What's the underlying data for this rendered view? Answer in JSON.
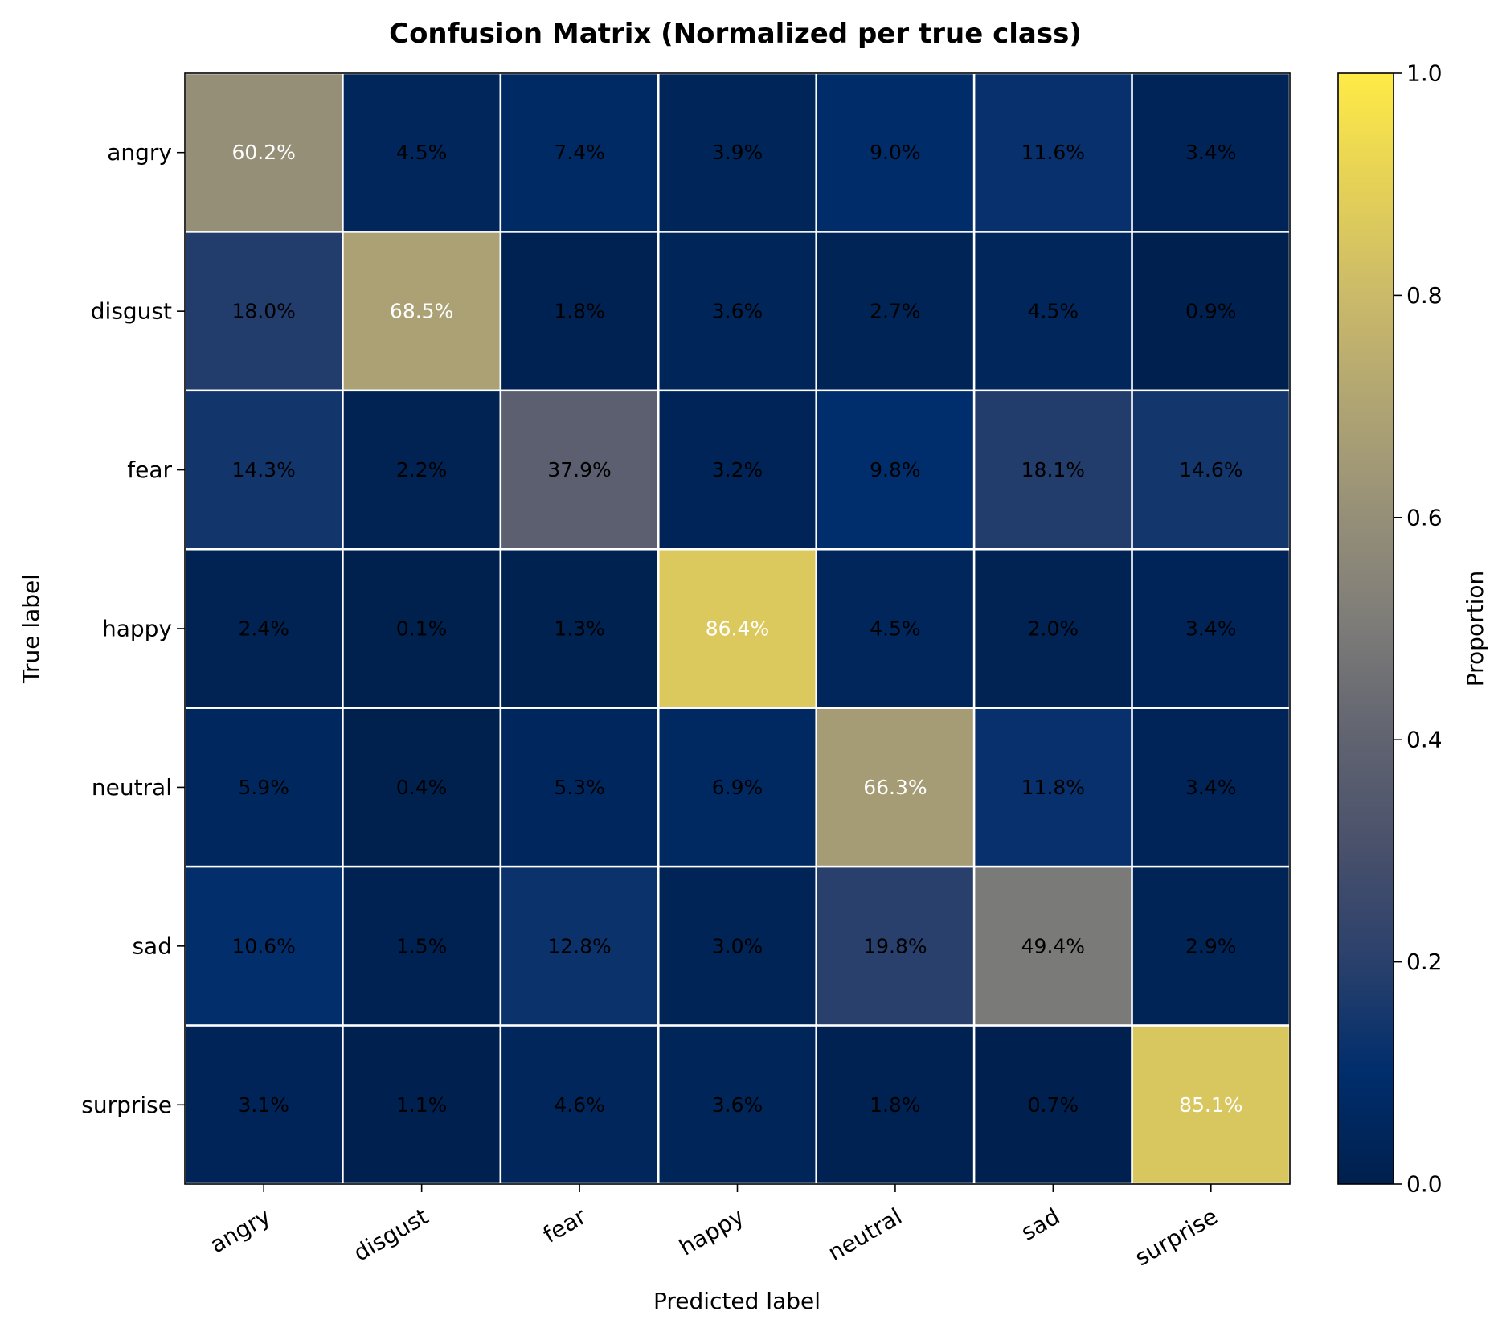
{
  "chart_data": {
    "type": "heatmap",
    "title": "Confusion Matrix (Normalized per true class)",
    "xlabel": "Predicted label",
    "ylabel": "True label",
    "x_categories": [
      "angry",
      "disgust",
      "fear",
      "happy",
      "neutral",
      "sad",
      "surprise"
    ],
    "y_categories": [
      "angry",
      "disgust",
      "fear",
      "happy",
      "neutral",
      "sad",
      "surprise"
    ],
    "values": [
      [
        60.2,
        4.5,
        7.4,
        3.9,
        9.0,
        11.6,
        3.4
      ],
      [
        18.0,
        68.5,
        1.8,
        3.6,
        2.7,
        4.5,
        0.9
      ],
      [
        14.3,
        2.2,
        37.9,
        3.2,
        9.8,
        18.1,
        14.6
      ],
      [
        2.4,
        0.1,
        1.3,
        86.4,
        4.5,
        2.0,
        3.4
      ],
      [
        5.9,
        0.4,
        5.3,
        6.9,
        66.3,
        11.8,
        3.4
      ],
      [
        10.6,
        1.5,
        12.8,
        3.0,
        19.8,
        49.4,
        2.9
      ],
      [
        3.1,
        1.1,
        4.6,
        3.6,
        1.8,
        0.7,
        85.1
      ]
    ],
    "cell_labels": [
      [
        "60.2%",
        "4.5%",
        "7.4%",
        "3.9%",
        "9.0%",
        "11.6%",
        "3.4%"
      ],
      [
        "18.0%",
        "68.5%",
        "1.8%",
        "3.6%",
        "2.7%",
        "4.5%",
        "0.9%"
      ],
      [
        "14.3%",
        "2.2%",
        "37.9%",
        "3.2%",
        "9.8%",
        "18.1%",
        "14.6%"
      ],
      [
        "2.4%",
        "0.1%",
        "1.3%",
        "86.4%",
        "4.5%",
        "2.0%",
        "3.4%"
      ],
      [
        "5.9%",
        "0.4%",
        "5.3%",
        "6.9%",
        "66.3%",
        "11.8%",
        "3.4%"
      ],
      [
        "10.6%",
        "1.5%",
        "12.8%",
        "3.0%",
        "19.8%",
        "49.4%",
        "2.9%"
      ],
      [
        "3.1%",
        "1.1%",
        "4.6%",
        "3.6%",
        "1.8%",
        "0.7%",
        "85.1%"
      ]
    ],
    "colormap": "cividis",
    "colorbar": {
      "label": "Proportion",
      "range": [
        0.0,
        1.0
      ],
      "ticks": [
        "0.0",
        "0.2",
        "0.4",
        "0.6",
        "0.8",
        "1.0"
      ]
    },
    "grid": false,
    "cell_borders_color": "#ffffff"
  }
}
